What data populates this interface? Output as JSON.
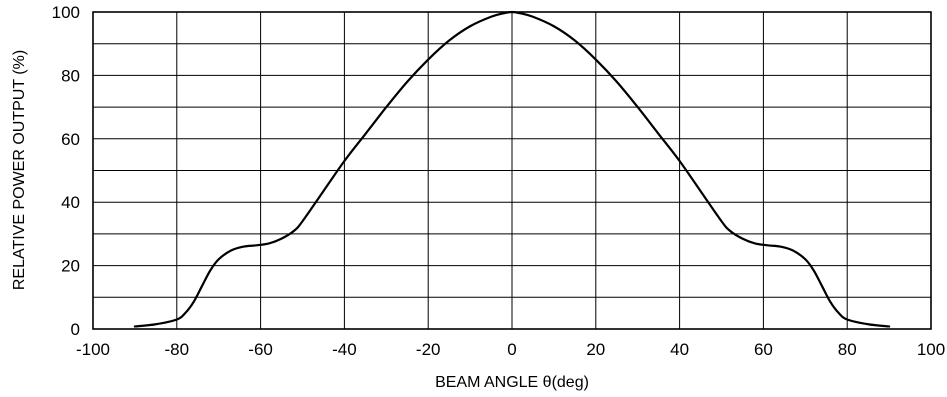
{
  "chart_data": {
    "type": "line",
    "title": "",
    "xlabel": "BEAM ANGLE θ(deg)",
    "ylabel": "RELATIVE POWER OUTPUT (%)",
    "xlim": [
      -100,
      100
    ],
    "ylim": [
      0,
      100
    ],
    "x_ticks": [
      -100,
      -80,
      -60,
      -40,
      -20,
      0,
      20,
      40,
      60,
      80,
      100
    ],
    "y_ticks": [
      0,
      20,
      40,
      60,
      80,
      100
    ],
    "grid": {
      "x_step": 20,
      "y_step": 10,
      "on": true
    },
    "series": [
      {
        "color": "#000000",
        "x": [
          -90,
          -85,
          -80,
          -78,
          -76,
          -74,
          -72,
          -70,
          -67,
          -64,
          -61,
          -58,
          -55,
          -52,
          -50,
          -45,
          -40,
          -35,
          -30,
          -25,
          -20,
          -15,
          -10,
          -5,
          -2,
          0,
          2,
          5,
          10,
          15,
          20,
          25,
          30,
          35,
          40,
          45,
          50,
          52,
          55,
          58,
          61,
          64,
          67,
          70,
          72,
          74,
          76,
          78,
          80,
          85,
          90
        ],
        "y": [
          0.8,
          1.5,
          3.0,
          5.0,
          8.5,
          13.5,
          18.5,
          22.0,
          24.8,
          26.0,
          26.4,
          27.0,
          28.5,
          31.0,
          34.0,
          43.5,
          53.0,
          61.5,
          70.0,
          78.0,
          85.0,
          91.0,
          95.5,
          98.5,
          99.6,
          100.0,
          99.6,
          98.5,
          95.5,
          91.0,
          85.0,
          78.0,
          70.0,
          61.5,
          53.0,
          43.5,
          34.0,
          31.0,
          28.5,
          27.0,
          26.4,
          26.0,
          24.8,
          22.0,
          18.5,
          13.5,
          8.5,
          5.0,
          3.0,
          1.5,
          0.8
        ]
      }
    ]
  }
}
